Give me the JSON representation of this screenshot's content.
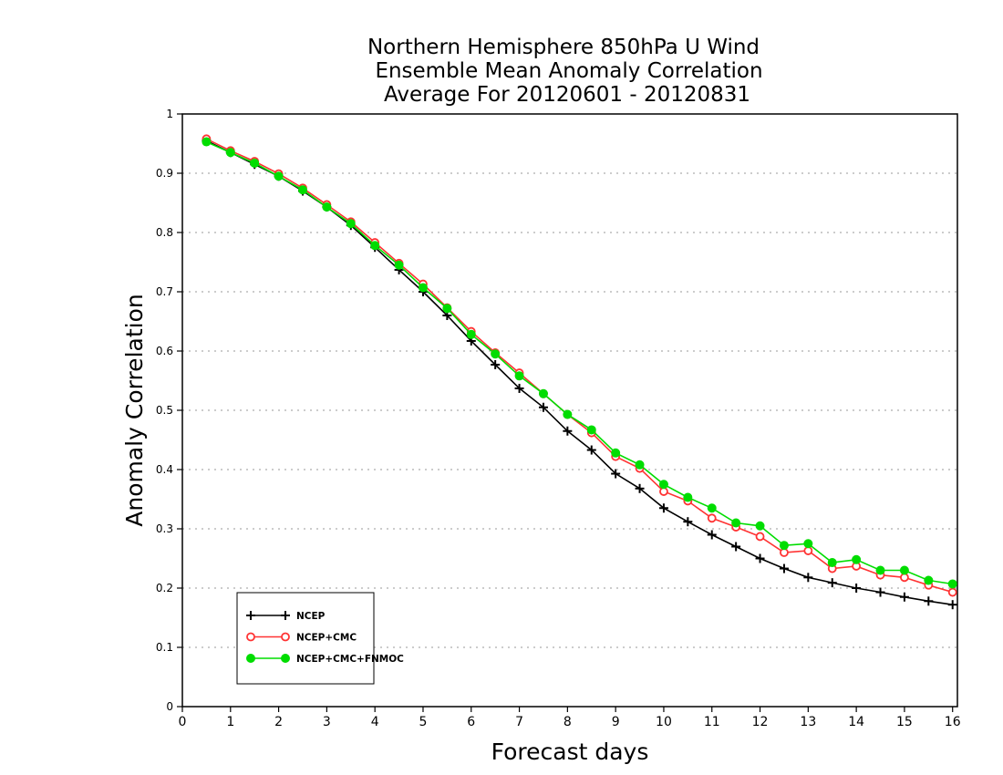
{
  "chart_data": {
    "type": "line",
    "title_lines": [
      "Northern Hemisphere 850hPa U Wind",
      "Ensemble Mean Anomaly Correlation",
      "Average For 20120601 - 20120831"
    ],
    "xlabel": "Forecast days",
    "ylabel": "Anomaly Correlation",
    "xlim": [
      0,
      16.1
    ],
    "ylim": [
      0,
      1
    ],
    "xticks": [
      "0",
      "1",
      "2",
      "3",
      "4",
      "5",
      "6",
      "7",
      "8",
      "9",
      "10",
      "11",
      "12",
      "13",
      "14",
      "15",
      "16"
    ],
    "yticks": [
      "0",
      "0.1",
      "0.2",
      "0.3",
      "0.4",
      "0.5",
      "0.6",
      "0.7",
      "0.8",
      "0.9",
      "1"
    ],
    "grid": "dotted horizontal",
    "legend_position": "bottom-left",
    "x": [
      0.5,
      1,
      1.5,
      2,
      2.5,
      3,
      3.5,
      4,
      4.5,
      5,
      5.5,
      6,
      6.5,
      7,
      7.5,
      8,
      8.5,
      9,
      9.5,
      10,
      10.5,
      11,
      11.5,
      12,
      12.5,
      13,
      13.5,
      14,
      14.5,
      15,
      15.5,
      16
    ],
    "series": [
      {
        "name": "NCEP",
        "color": "#000000",
        "marker": "plus",
        "values": [
          0.955,
          0.935,
          0.915,
          0.895,
          0.87,
          0.843,
          0.812,
          0.775,
          0.737,
          0.7,
          0.66,
          0.617,
          0.577,
          0.537,
          0.505,
          0.465,
          0.433,
          0.393,
          0.368,
          0.335,
          0.312,
          0.29,
          0.27,
          0.25,
          0.233,
          0.218,
          0.209,
          0.2,
          0.193,
          0.185,
          0.178,
          0.172
        ]
      },
      {
        "name": "NCEP+CMC",
        "color": "#ff3333",
        "marker": "open-circle",
        "values": [
          0.958,
          0.938,
          0.92,
          0.899,
          0.875,
          0.847,
          0.818,
          0.783,
          0.748,
          0.713,
          0.673,
          0.633,
          0.597,
          0.563,
          0.528,
          0.493,
          0.462,
          0.422,
          0.402,
          0.363,
          0.347,
          0.318,
          0.303,
          0.287,
          0.26,
          0.263,
          0.233,
          0.237,
          0.222,
          0.218,
          0.205,
          0.193
        ]
      },
      {
        "name": "NCEP+CMC+FNMOC",
        "color": "#00dd00",
        "marker": "filled-circle",
        "values": [
          0.953,
          0.935,
          0.917,
          0.895,
          0.872,
          0.843,
          0.815,
          0.778,
          0.745,
          0.707,
          0.672,
          0.628,
          0.595,
          0.558,
          0.528,
          0.493,
          0.467,
          0.428,
          0.408,
          0.375,
          0.353,
          0.335,
          0.31,
          0.305,
          0.272,
          0.275,
          0.243,
          0.248,
          0.23,
          0.23,
          0.213,
          0.207
        ]
      }
    ]
  }
}
